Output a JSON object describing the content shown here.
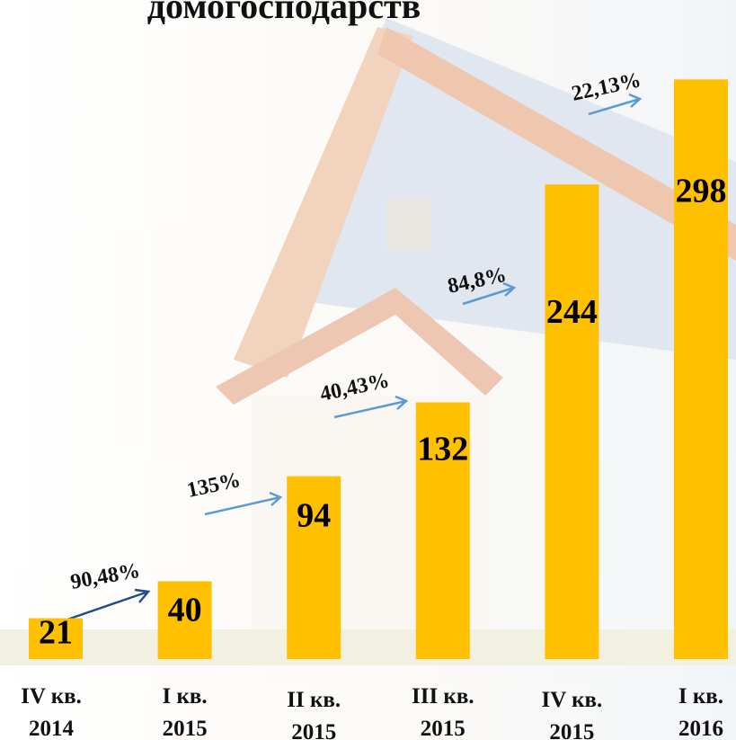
{
  "chart_data": {
    "type": "bar",
    "title": "домогосподарств",
    "categories": [
      "IV кв.\n2014",
      "I кв.\n2015",
      "II кв.\n2015",
      "III кв.\n2015",
      "IV кв.\n2015",
      "I кв.\n2016"
    ],
    "values": [
      21,
      40,
      94,
      132,
      244,
      298
    ],
    "color": "#ffc000",
    "ylim": [
      0,
      300
    ],
    "annotations": [
      "90,48%",
      "135%",
      "40,43%",
      "84,8%",
      "22,13%"
    ]
  }
}
